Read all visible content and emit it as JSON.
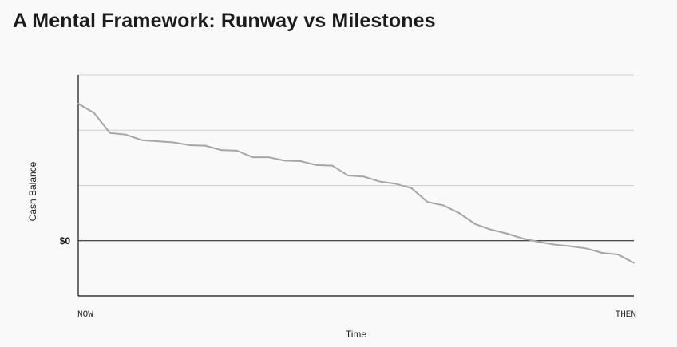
{
  "title": "A Mental Framework: Runway vs Milestones",
  "colors": {
    "background": "#f9f9f9",
    "line": "#a6a6a6",
    "grid": "#cfcfcf",
    "axis": "#111111"
  },
  "chart_data": {
    "type": "line",
    "title": "A Mental Framework: Runway vs Milestones",
    "xlabel": "Time",
    "ylabel": "Cash Balance",
    "x_tick_labels": [
      "NOW",
      "THEN"
    ],
    "y_tick_labels": [
      {
        "value": 0,
        "label": "$0"
      }
    ],
    "xlim": [
      0,
      35
    ],
    "ylim": [
      -1,
      3
    ],
    "grid": true,
    "legend": "none",
    "series": [
      {
        "x": [
          0,
          1,
          2,
          3,
          4,
          5,
          6,
          7,
          8,
          9,
          10,
          11,
          12,
          13,
          14,
          15,
          16,
          17,
          18,
          19,
          20,
          21,
          22,
          23,
          24,
          25,
          26,
          27,
          28,
          29,
          30,
          31,
          32,
          33,
          34,
          35
        ],
        "values": [
          2.48,
          2.31,
          1.95,
          1.92,
          1.82,
          1.8,
          1.78,
          1.73,
          1.72,
          1.64,
          1.63,
          1.51,
          1.51,
          1.45,
          1.44,
          1.37,
          1.36,
          1.18,
          1.16,
          1.07,
          1.03,
          0.95,
          0.7,
          0.64,
          0.5,
          0.3,
          0.2,
          0.13,
          0.04,
          -0.02,
          -0.07,
          -0.1,
          -0.14,
          -0.22,
          -0.25,
          -0.4
        ]
      }
    ]
  }
}
